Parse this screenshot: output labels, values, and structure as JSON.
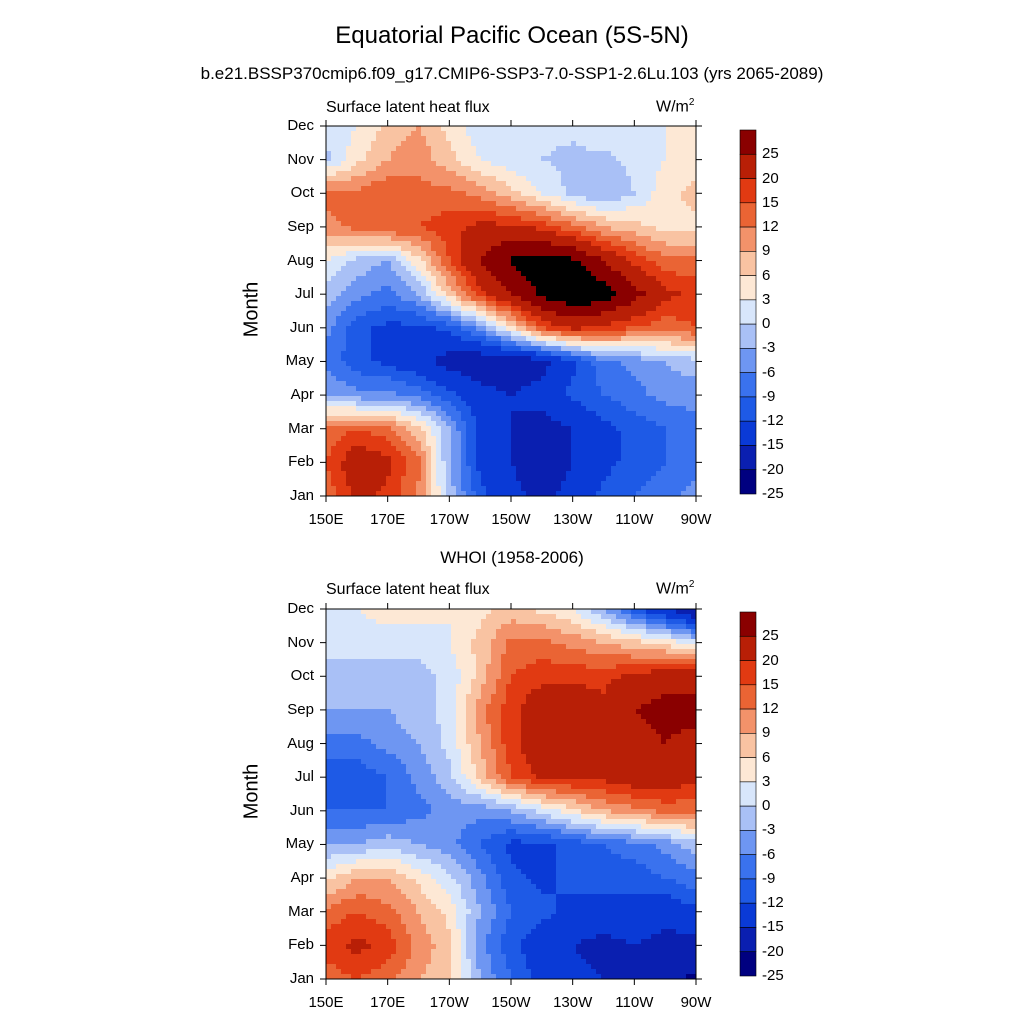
{
  "page": {
    "title": "Equatorial Pacific Ocean (5S-5N)",
    "subtitle": "b.e21.BSSP370cmip6.f09_g17.CMIP6-SSP3-7.0-SSP1-2.6Lu.103 (yrs 2065-2089)"
  },
  "chart_data": [
    {
      "type": "heatmap",
      "title": "",
      "left_label": "Surface latent heat flux",
      "units": "W/m",
      "units_sup": "2",
      "xlabel": "",
      "ylabel": "Month",
      "xticks": [
        "150E",
        "170E",
        "170W",
        "150W",
        "130W",
        "110W",
        "90W"
      ],
      "xticks_lon_east": [
        150,
        170,
        190,
        210,
        230,
        250,
        270
      ],
      "yticks": [
        "Jan",
        "Feb",
        "Mar",
        "Apr",
        "May",
        "Jun",
        "Jul",
        "Aug",
        "Sep",
        "Oct",
        "Nov",
        "Dec"
      ],
      "xlim_lon_east": [
        150,
        270
      ],
      "ylim_month": [
        1,
        12
      ],
      "colorbar_levels": [
        -25,
        -20,
        -15,
        -12,
        -9,
        -6,
        -3,
        0,
        3,
        6,
        9,
        12,
        15,
        20,
        25
      ],
      "colorbar_labels": [
        "25",
        "20",
        "15",
        "12",
        "9",
        "6",
        "3",
        "0",
        "-3",
        "-6",
        "-9",
        "-12",
        "-15",
        "-20",
        "-25"
      ],
      "lon_east": [
        150,
        160,
        170,
        180,
        190,
        200,
        210,
        220,
        230,
        240,
        250,
        260,
        270
      ],
      "values": [
        [
          10,
          16,
          14,
          8,
          -4,
          -14,
          -18,
          -22,
          -18,
          -14,
          -12,
          -10,
          -8
        ],
        [
          12,
          18,
          16,
          10,
          -6,
          -16,
          -20,
          -24,
          -20,
          -16,
          -14,
          -12,
          -10
        ],
        [
          10,
          12,
          10,
          4,
          -6,
          -16,
          -20,
          -22,
          -20,
          -16,
          -14,
          -12,
          -10
        ],
        [
          -6,
          -8,
          -8,
          -10,
          -14,
          -18,
          -20,
          -18,
          -14,
          -12,
          -10,
          -8,
          -8
        ],
        [
          -10,
          -14,
          -16,
          -18,
          -22,
          -24,
          -24,
          -22,
          -16,
          -10,
          -8,
          -6,
          -4
        ],
        [
          -8,
          -14,
          -16,
          -16,
          -14,
          -8,
          2,
          12,
          16,
          14,
          12,
          10,
          12
        ],
        [
          -4,
          -8,
          -10,
          -6,
          4,
          14,
          20,
          26,
          30,
          28,
          22,
          16,
          14
        ],
        [
          0,
          -4,
          -6,
          2,
          12,
          20,
          26,
          28,
          26,
          20,
          14,
          10,
          10
        ],
        [
          8,
          10,
          12,
          12,
          14,
          16,
          16,
          14,
          10,
          6,
          4,
          2,
          2
        ],
        [
          10,
          10,
          12,
          10,
          10,
          8,
          4,
          0,
          -4,
          -6,
          -3,
          2,
          4
        ],
        [
          -4,
          2,
          6,
          8,
          4,
          0,
          -2,
          -3,
          -4,
          -4,
          -2,
          0,
          2
        ],
        [
          -2,
          0,
          4,
          6,
          2,
          -2,
          -3,
          -2,
          -2,
          0,
          0,
          0,
          0
        ]
      ]
    },
    {
      "type": "heatmap",
      "title": "WHOI (1958-2006)",
      "left_label": "Surface latent heat flux",
      "units": "W/m",
      "units_sup": "2",
      "xlabel": "",
      "ylabel": "Month",
      "xticks": [
        "150E",
        "170E",
        "170W",
        "150W",
        "130W",
        "110W",
        "90W"
      ],
      "xticks_lon_east": [
        150,
        170,
        190,
        210,
        230,
        250,
        270
      ],
      "yticks": [
        "Jan",
        "Feb",
        "Mar",
        "Apr",
        "May",
        "Jun",
        "Jul",
        "Aug",
        "Sep",
        "Oct",
        "Nov",
        "Dec"
      ],
      "xlim_lon_east": [
        150,
        270
      ],
      "ylim_month": [
        1,
        12
      ],
      "colorbar_levels": [
        -25,
        -20,
        -15,
        -12,
        -9,
        -6,
        -3,
        0,
        3,
        6,
        9,
        12,
        15,
        20,
        25
      ],
      "colorbar_labels": [
        "25",
        "20",
        "15",
        "12",
        "9",
        "6",
        "3",
        "0",
        "-3",
        "-6",
        "-9",
        "-12",
        "-15",
        "-20",
        "-25"
      ],
      "lon_east": [
        150,
        160,
        170,
        180,
        190,
        200,
        210,
        220,
        230,
        240,
        250,
        260,
        270
      ],
      "values": [
        [
          10,
          12,
          10,
          6,
          4,
          -6,
          -12,
          -16,
          -18,
          -20,
          -22,
          -24,
          -26
        ],
        [
          14,
          16,
          14,
          8,
          4,
          -8,
          -14,
          -18,
          -20,
          -22,
          -20,
          -22,
          -22
        ],
        [
          10,
          12,
          10,
          6,
          2,
          -6,
          -12,
          -14,
          -16,
          -16,
          -16,
          -18,
          -16
        ],
        [
          2,
          6,
          6,
          2,
          -2,
          -8,
          -14,
          -16,
          -14,
          -14,
          -14,
          -12,
          -10
        ],
        [
          -6,
          -6,
          -4,
          -6,
          -8,
          -12,
          -16,
          -16,
          -14,
          -12,
          -10,
          -8,
          -4
        ],
        [
          -12,
          -12,
          -12,
          -10,
          -8,
          -8,
          -6,
          -2,
          2,
          6,
          8,
          10,
          10
        ],
        [
          -14,
          -14,
          -12,
          -8,
          -4,
          4,
          12,
          16,
          16,
          16,
          18,
          18,
          16
        ],
        [
          -10,
          -10,
          -8,
          -6,
          -2,
          6,
          14,
          18,
          18,
          16,
          18,
          20,
          18
        ],
        [
          -6,
          -6,
          -6,
          -4,
          -2,
          8,
          14,
          18,
          18,
          16,
          20,
          22,
          22
        ],
        [
          -4,
          -4,
          -4,
          -4,
          -2,
          4,
          12,
          14,
          14,
          14,
          16,
          18,
          18
        ],
        [
          -2,
          -2,
          -2,
          -2,
          0,
          4,
          10,
          10,
          8,
          6,
          4,
          2,
          -2
        ],
        [
          -2,
          0,
          2,
          2,
          0,
          2,
          4,
          2,
          0,
          -6,
          -14,
          -20,
          -26
        ]
      ]
    }
  ]
}
